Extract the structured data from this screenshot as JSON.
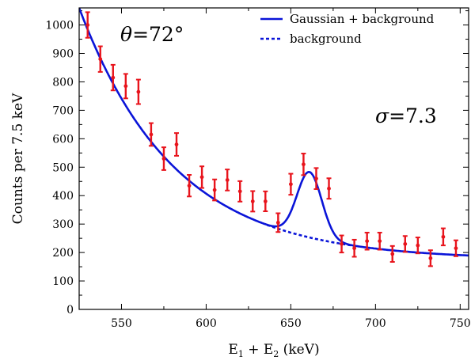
{
  "chart_data": {
    "type": "scatter",
    "xlabel": "E",
    "xlabel_sub1": "1",
    "xlabel_plus": " + E",
    "xlabel_sub2": "2",
    "xlabel_unit": " (keV)",
    "ylabel": "Counts per 7.5 keV",
    "xlim": [
      525,
      755
    ],
    "ylim": [
      0,
      1060
    ],
    "x_ticks": [
      550,
      600,
      650,
      700,
      750
    ],
    "y_ticks": [
      0,
      100,
      200,
      300,
      400,
      500,
      600,
      700,
      800,
      900,
      1000
    ],
    "annotations": {
      "theta_symbol": "θ",
      "theta_value": "=72°",
      "sigma_symbol": "σ",
      "sigma_value": "=7.3"
    },
    "legend": {
      "position": "top-right",
      "fit_label": "Gaussian + background",
      "background_label": "background"
    },
    "colors": {
      "data": "#e8141c",
      "fit": "#0a14d8"
    },
    "series": [
      {
        "kind": "data",
        "points": [
          {
            "x": 530,
            "y": 1000,
            "err": 45
          },
          {
            "x": 537.5,
            "y": 880,
            "err": 45
          },
          {
            "x": 545,
            "y": 815,
            "err": 45
          },
          {
            "x": 552.5,
            "y": 785,
            "err": 43
          },
          {
            "x": 560,
            "y": 765,
            "err": 43
          },
          {
            "x": 567.5,
            "y": 615,
            "err": 40
          },
          {
            "x": 575,
            "y": 530,
            "err": 40
          },
          {
            "x": 582.5,
            "y": 580,
            "err": 40
          },
          {
            "x": 590,
            "y": 435,
            "err": 38
          },
          {
            "x": 597.5,
            "y": 465,
            "err": 38
          },
          {
            "x": 605,
            "y": 420,
            "err": 37
          },
          {
            "x": 612.5,
            "y": 455,
            "err": 37
          },
          {
            "x": 620,
            "y": 415,
            "err": 36
          },
          {
            "x": 627.5,
            "y": 380,
            "err": 36
          },
          {
            "x": 635,
            "y": 380,
            "err": 35
          },
          {
            "x": 642.5,
            "y": 305,
            "err": 33
          },
          {
            "x": 650,
            "y": 440,
            "err": 37
          },
          {
            "x": 657.5,
            "y": 510,
            "err": 38
          },
          {
            "x": 665,
            "y": 460,
            "err": 37
          },
          {
            "x": 672.5,
            "y": 425,
            "err": 36
          },
          {
            "x": 680,
            "y": 230,
            "err": 30
          },
          {
            "x": 687.5,
            "y": 215,
            "err": 30
          },
          {
            "x": 695,
            "y": 240,
            "err": 30
          },
          {
            "x": 702.5,
            "y": 240,
            "err": 30
          },
          {
            "x": 710,
            "y": 195,
            "err": 28
          },
          {
            "x": 717.5,
            "y": 230,
            "err": 28
          },
          {
            "x": 725,
            "y": 225,
            "err": 28
          },
          {
            "x": 732.5,
            "y": 180,
            "err": 28
          },
          {
            "x": 740,
            "y": 255,
            "err": 30
          },
          {
            "x": 747.5,
            "y": 215,
            "err": 28
          }
        ]
      }
    ],
    "fit_model": {
      "background": {
        "c": 175,
        "a": 885,
        "x0": 525,
        "tau": 56
      },
      "gaussian": {
        "amplitude": 230,
        "mean": 661,
        "sigma": 7.3
      },
      "fit_x_range": [
        525,
        755
      ],
      "background_dashed_range": [
        636,
        690
      ]
    }
  }
}
